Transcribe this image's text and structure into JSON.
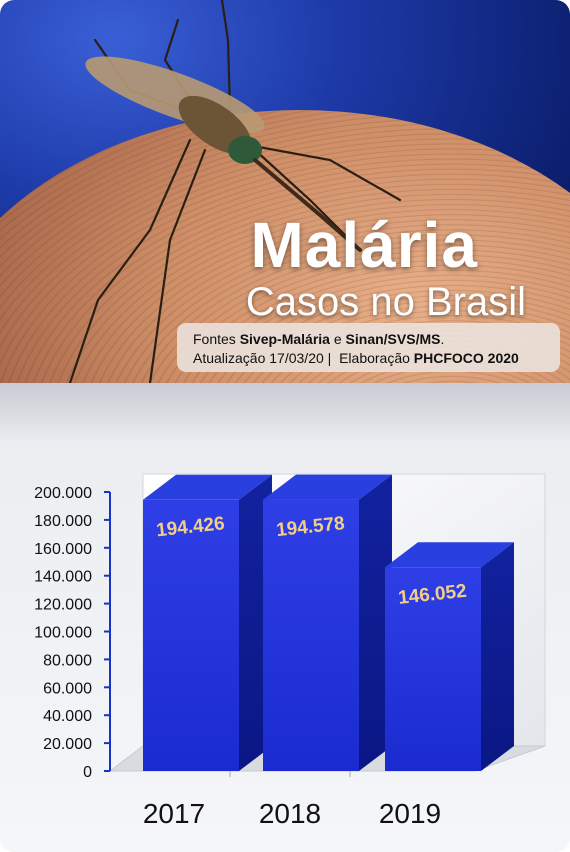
{
  "title": "Malária",
  "subtitle": "Casos no Brasil",
  "source": {
    "prefix": "Fontes ",
    "source1": "Sivep-Malária",
    "conjunction": " e ",
    "source2": "Sinan/SVS/MS",
    "period": ".",
    "update_label": "Atualização 17/03/20 |",
    "elaboration_label": "Elaboração ",
    "elaboration_value": "PHCFOCO 2020"
  },
  "colors": {
    "bar_front": "#1f33d9",
    "bar_side": "#0c1a9a",
    "bar_top": "#2a3fe0",
    "label": "#f3cf86",
    "axis": "#1733c7"
  },
  "chart_data": {
    "type": "bar",
    "categories": [
      "2017",
      "2018",
      "2019"
    ],
    "values": [
      194426,
      194578,
      146052
    ],
    "value_labels": [
      "194.426",
      "194.578",
      "146.052"
    ],
    "y_ticks": [
      "0",
      "20.000",
      "40.000",
      "60.000",
      "80.000",
      "100.000",
      "120.000",
      "140.000",
      "160.000",
      "180.000",
      "200.000"
    ],
    "ylim": [
      0,
      200000
    ],
    "style": "3d-bar"
  }
}
